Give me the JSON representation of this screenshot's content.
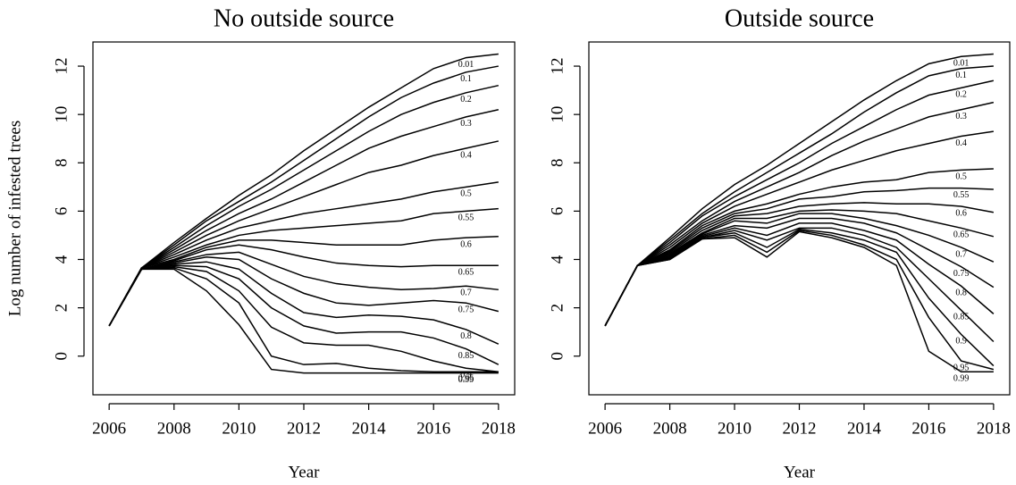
{
  "chart_data": [
    {
      "type": "line",
      "title": "No outside source",
      "x_label": "Year",
      "y_label": "Log number of infested trees",
      "x": [
        2006,
        2007,
        2008,
        2009,
        2010,
        2011,
        2012,
        2013,
        2014,
        2015,
        2016,
        2017,
        2018
      ],
      "xlim": [
        2005.5,
        2018.5
      ],
      "ylim": [
        -1.6,
        13.0
      ],
      "xticks": [
        2006,
        2008,
        2010,
        2012,
        2014,
        2016,
        2018
      ],
      "yticks": [
        0,
        2,
        4,
        6,
        8,
        10,
        12
      ],
      "series": [
        {
          "name": "0.01",
          "color": "#000000",
          "values": [
            1.25,
            3.65,
            4.7,
            5.7,
            6.65,
            7.5,
            8.5,
            9.4,
            10.3,
            11.1,
            11.9,
            12.35,
            12.5
          ]
        },
        {
          "name": "0.1",
          "color": "#000000",
          "values": [
            1.25,
            3.65,
            4.6,
            5.6,
            6.4,
            7.2,
            8.1,
            9.0,
            9.9,
            10.7,
            11.3,
            11.75,
            12.0
          ]
        },
        {
          "name": "0.2",
          "color": "#000000",
          "values": [
            1.25,
            3.65,
            4.5,
            5.4,
            6.2,
            6.9,
            7.7,
            8.5,
            9.3,
            10.0,
            10.5,
            10.9,
            11.2
          ]
        },
        {
          "name": "0.3",
          "color": "#000000",
          "values": [
            1.25,
            3.65,
            4.4,
            5.2,
            5.9,
            6.5,
            7.2,
            7.9,
            8.6,
            9.1,
            9.5,
            9.9,
            10.2
          ]
        },
        {
          "name": "0.4",
          "color": "#000000",
          "values": [
            1.25,
            3.65,
            4.3,
            5.0,
            5.6,
            6.1,
            6.6,
            7.1,
            7.6,
            7.9,
            8.3,
            8.6,
            8.9
          ]
        },
        {
          "name": "0.5",
          "color": "#000000",
          "values": [
            1.25,
            3.65,
            4.2,
            4.8,
            5.3,
            5.6,
            5.9,
            6.1,
            6.3,
            6.5,
            6.8,
            7.0,
            7.2
          ]
        },
        {
          "name": "0.55",
          "color": "#000000",
          "values": [
            1.25,
            3.65,
            4.1,
            4.6,
            5.0,
            5.2,
            5.3,
            5.4,
            5.5,
            5.6,
            5.9,
            6.0,
            6.1
          ]
        },
        {
          "name": "0.6",
          "color": "#000000",
          "values": [
            1.25,
            3.65,
            4.0,
            4.5,
            4.8,
            4.8,
            4.7,
            4.6,
            4.6,
            4.6,
            4.8,
            4.9,
            4.95
          ]
        },
        {
          "name": "0.65",
          "color": "#000000",
          "values": [
            1.25,
            3.6,
            3.95,
            4.4,
            4.6,
            4.4,
            4.1,
            3.85,
            3.75,
            3.7,
            3.75,
            3.75,
            3.75
          ]
        },
        {
          "name": "0.7",
          "color": "#000000",
          "values": [
            1.25,
            3.6,
            3.9,
            4.2,
            4.3,
            3.8,
            3.3,
            3.0,
            2.85,
            2.75,
            2.8,
            2.9,
            2.75
          ]
        },
        {
          "name": "0.75",
          "color": "#000000",
          "values": [
            1.25,
            3.6,
            3.85,
            4.1,
            4.0,
            3.2,
            2.6,
            2.2,
            2.1,
            2.2,
            2.3,
            2.2,
            1.85
          ]
        },
        {
          "name": "0.8",
          "color": "#000000",
          "values": [
            1.25,
            3.6,
            3.8,
            3.9,
            3.6,
            2.6,
            1.8,
            1.6,
            1.7,
            1.65,
            1.5,
            1.1,
            0.5
          ]
        },
        {
          "name": "0.85",
          "color": "#000000",
          "values": [
            1.25,
            3.6,
            3.75,
            3.7,
            3.2,
            2.0,
            1.25,
            0.95,
            1.0,
            1.0,
            0.75,
            0.3,
            -0.35
          ]
        },
        {
          "name": "0.9",
          "color": "#000000",
          "values": [
            1.25,
            3.6,
            3.7,
            3.5,
            2.7,
            1.2,
            0.55,
            0.45,
            0.45,
            0.2,
            -0.2,
            -0.5,
            -0.65
          ]
        },
        {
          "name": "0.95",
          "color": "#000000",
          "values": [
            1.25,
            3.6,
            3.65,
            3.2,
            2.2,
            0.0,
            -0.35,
            -0.3,
            -0.5,
            -0.6,
            -0.65,
            -0.65,
            -0.65
          ]
        },
        {
          "name": "0.99",
          "color": "#000000",
          "values": [
            1.25,
            3.6,
            3.6,
            2.7,
            1.3,
            -0.55,
            -0.7,
            -0.7,
            -0.7,
            -0.7,
            -0.7,
            -0.7,
            -0.7
          ]
        }
      ]
    },
    {
      "type": "line",
      "title": "Outside source",
      "x_label": "Year",
      "x": [
        2006,
        2007,
        2008,
        2009,
        2010,
        2011,
        2012,
        2013,
        2014,
        2015,
        2016,
        2017,
        2018
      ],
      "xlim": [
        2005.5,
        2018.5
      ],
      "ylim": [
        -1.6,
        13.0
      ],
      "xticks": [
        2006,
        2008,
        2010,
        2012,
        2014,
        2016,
        2018
      ],
      "yticks": [
        0,
        2,
        4,
        6,
        8,
        10,
        12
      ],
      "series": [
        {
          "name": "0.01",
          "color": "#000000",
          "values": [
            1.25,
            3.75,
            4.9,
            6.1,
            7.1,
            7.9,
            8.8,
            9.7,
            10.6,
            11.4,
            12.1,
            12.4,
            12.5
          ]
        },
        {
          "name": "0.1",
          "color": "#000000",
          "values": [
            1.25,
            3.75,
            4.8,
            5.9,
            6.8,
            7.6,
            8.4,
            9.2,
            10.1,
            10.9,
            11.6,
            11.9,
            12.0
          ]
        },
        {
          "name": "0.2",
          "color": "#000000",
          "values": [
            1.25,
            3.75,
            4.7,
            5.8,
            6.6,
            7.3,
            8.0,
            8.8,
            9.5,
            10.2,
            10.8,
            11.1,
            11.4
          ]
        },
        {
          "name": "0.3",
          "color": "#000000",
          "values": [
            1.25,
            3.75,
            4.6,
            5.6,
            6.4,
            7.0,
            7.6,
            8.3,
            8.9,
            9.4,
            9.9,
            10.2,
            10.5
          ]
        },
        {
          "name": "0.4",
          "color": "#000000",
          "values": [
            1.25,
            3.75,
            4.5,
            5.5,
            6.2,
            6.7,
            7.2,
            7.7,
            8.1,
            8.5,
            8.8,
            9.1,
            9.3
          ]
        },
        {
          "name": "0.5",
          "color": "#000000",
          "values": [
            1.25,
            3.75,
            4.4,
            5.4,
            6.0,
            6.3,
            6.7,
            7.0,
            7.2,
            7.3,
            7.6,
            7.7,
            7.75
          ]
        },
        {
          "name": "0.55",
          "color": "#000000",
          "values": [
            1.25,
            3.75,
            4.35,
            5.3,
            5.9,
            6.1,
            6.5,
            6.6,
            6.8,
            6.85,
            6.95,
            6.95,
            6.9
          ]
        },
        {
          "name": "0.6",
          "color": "#000000",
          "values": [
            1.25,
            3.75,
            4.3,
            5.2,
            5.8,
            5.9,
            6.2,
            6.3,
            6.35,
            6.3,
            6.3,
            6.2,
            5.95
          ]
        },
        {
          "name": "0.65",
          "color": "#000000",
          "values": [
            1.25,
            3.75,
            4.25,
            5.1,
            5.7,
            5.7,
            6.0,
            6.05,
            6.0,
            5.9,
            5.6,
            5.3,
            4.95
          ]
        },
        {
          "name": "0.7",
          "color": "#000000",
          "values": [
            1.25,
            3.75,
            4.2,
            5.05,
            5.6,
            5.5,
            5.9,
            5.9,
            5.7,
            5.4,
            5.0,
            4.5,
            3.9
          ]
        },
        {
          "name": "0.75",
          "color": "#000000",
          "values": [
            1.25,
            3.75,
            4.15,
            5.0,
            5.4,
            5.3,
            5.7,
            5.7,
            5.5,
            5.1,
            4.4,
            3.7,
            2.85
          ]
        },
        {
          "name": "0.8",
          "color": "#000000",
          "values": [
            1.25,
            3.75,
            4.1,
            4.95,
            5.3,
            5.0,
            5.5,
            5.5,
            5.2,
            4.8,
            3.8,
            2.9,
            1.75
          ]
        },
        {
          "name": "0.85",
          "color": "#000000",
          "values": [
            1.25,
            3.75,
            4.1,
            4.9,
            5.2,
            4.8,
            5.3,
            5.3,
            5.0,
            4.5,
            3.2,
            1.9,
            0.6
          ]
        },
        {
          "name": "0.9",
          "color": "#000000",
          "values": [
            1.25,
            3.75,
            4.05,
            4.9,
            5.1,
            4.5,
            5.25,
            5.1,
            4.8,
            4.3,
            2.4,
            0.9,
            -0.4
          ]
        },
        {
          "name": "0.95",
          "color": "#000000",
          "values": [
            1.25,
            3.75,
            4.0,
            4.85,
            5.0,
            4.3,
            5.2,
            5.0,
            4.6,
            4.0,
            1.6,
            -0.2,
            -0.55
          ]
        },
        {
          "name": "0.99",
          "color": "#000000",
          "values": [
            1.25,
            3.75,
            4.0,
            4.85,
            4.9,
            4.1,
            5.15,
            4.9,
            4.5,
            3.75,
            0.2,
            -0.65,
            -0.65
          ]
        }
      ]
    }
  ]
}
